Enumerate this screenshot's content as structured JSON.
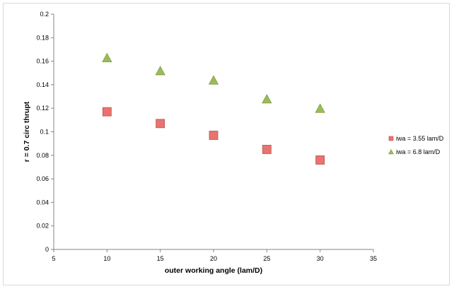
{
  "chart_data": {
    "type": "scatter",
    "title": "",
    "xlabel": "outer working angle (lam/D)",
    "ylabel": "r = 0.7 circ thrupt",
    "xlim": [
      5,
      35
    ],
    "ylim": [
      0,
      0.2
    ],
    "x_ticks": [
      "5",
      "10",
      "15",
      "20",
      "25",
      "30",
      "35"
    ],
    "y_ticks": [
      "0",
      "0.02",
      "0.04",
      "0.06",
      "0.08",
      "0.1",
      "0.12",
      "0.14",
      "0.16",
      "0.18",
      "0.2"
    ],
    "grid": false,
    "legend_position": "right",
    "series": [
      {
        "name": "iwa = 3.55 lam/D",
        "marker": "square",
        "color": "#e8736f",
        "x": [
          10,
          15,
          20,
          25,
          30
        ],
        "y": [
          0.117,
          0.107,
          0.097,
          0.085,
          0.076
        ]
      },
      {
        "name": "iwa = 6.8 lam/D",
        "marker": "triangle",
        "color": "#9bbb59",
        "x": [
          10,
          15,
          20,
          25,
          30
        ],
        "y": [
          0.163,
          0.152,
          0.144,
          0.128,
          0.12
        ]
      }
    ]
  }
}
